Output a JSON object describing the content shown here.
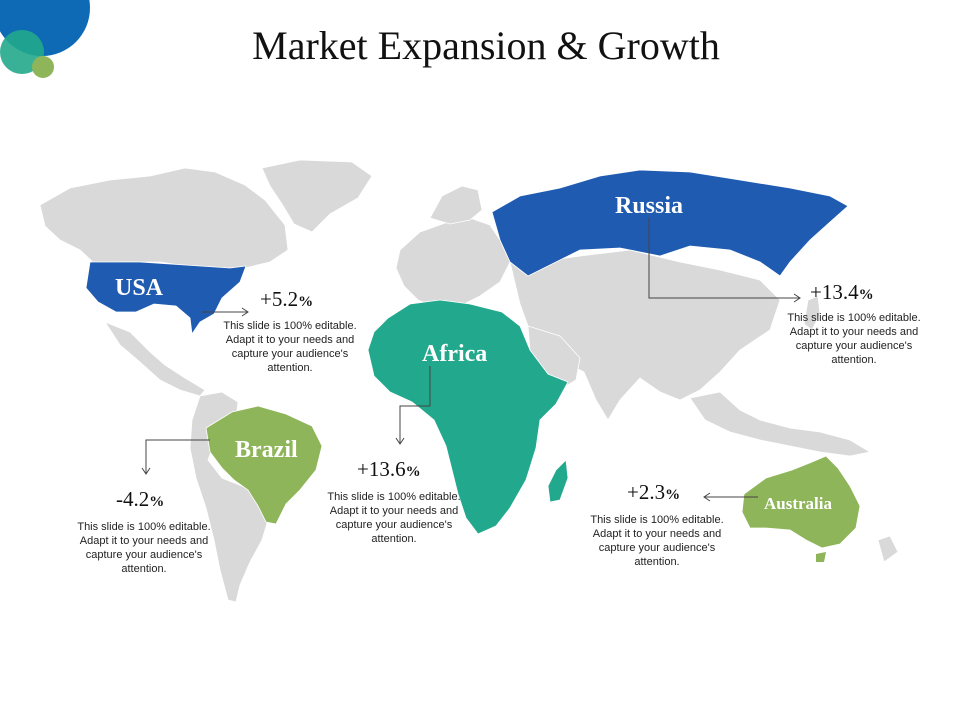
{
  "title": "Market Expansion & Growth",
  "colors": {
    "land": "#d9d9d9",
    "blue": "#1f5bb1",
    "teal": "#22a88c",
    "green": "#8fb55a",
    "accent_circle": "#0f6ab5"
  },
  "regions": {
    "usa": {
      "label": "USA",
      "value": "+5.2",
      "unit": "%",
      "text": "This slide is 100% editable. Adapt it to your needs and capture your audience's attention."
    },
    "russia": {
      "label": "Russia",
      "value": "+13.4",
      "unit": "%",
      "text": "This slide is 100% editable. Adapt it to your needs and capture your audience's attention."
    },
    "africa": {
      "label": "Africa",
      "value": "+13.6",
      "unit": "%",
      "text": "This slide is 100% editable. Adapt it to your needs and capture your audience's attention."
    },
    "brazil": {
      "label": "Brazil",
      "value": "-4.2",
      "unit": "%",
      "text": "This slide is 100% editable. Adapt it to your needs and capture your audience's attention."
    },
    "australia": {
      "label": "Australia",
      "value": "+2.3",
      "unit": "%",
      "text": "This slide is 100% editable. Adapt it to your needs and capture your audience's attention."
    }
  }
}
